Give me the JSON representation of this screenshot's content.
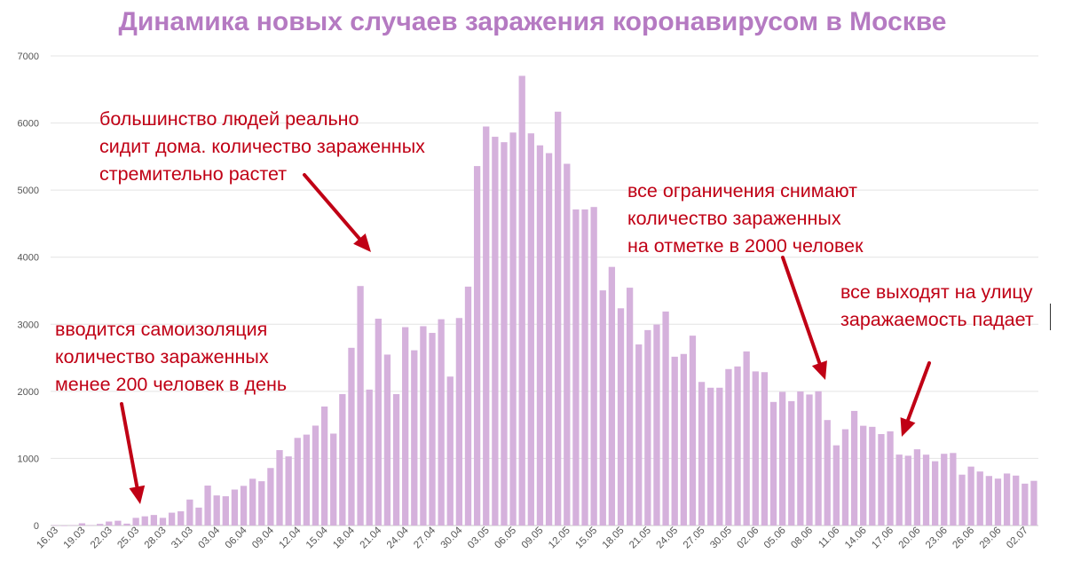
{
  "chart_data": {
    "type": "bar",
    "title": "Динамика новых случаев заражения коронавирусом в Москве",
    "xlabel": "",
    "ylabel": "",
    "ylim": [
      0,
      7000
    ],
    "y_ticks": [
      0,
      1000,
      2000,
      3000,
      4000,
      5000,
      6000,
      7000
    ],
    "grid": true,
    "bar_color": "#d5b1dc",
    "start_date": "2020-03-16",
    "tick_labels": [
      "16.03",
      "19.03",
      "22.03",
      "25.03",
      "28.03",
      "31.03",
      "03.04",
      "06.04",
      "09.04",
      "12.04",
      "15.04",
      "18.04",
      "21.04",
      "24.04",
      "27.04",
      "30.04",
      "03.05",
      "06.05",
      "09.05",
      "12.05",
      "15.05",
      "18.05",
      "21.05",
      "24.05",
      "27.05",
      "30.05",
      "02.06",
      "05.06",
      "08.06",
      "11.06",
      "14.06",
      "17.06",
      "20.06",
      "23.06",
      "26.06",
      "29.06",
      "02.07"
    ],
    "values": [
      6,
      0,
      6,
      33,
      6,
      24,
      59,
      71,
      28,
      114,
      137,
      157,
      114,
      191,
      212,
      387,
      267,
      595,
      448,
      436,
      536,
      591,
      697,
      660,
      857,
      1124,
      1030,
      1306,
      1355,
      1489,
      1774,
      1370,
      1959,
      2649,
      3570,
      2026,
      3083,
      2548,
      1959,
      2957,
      2612,
      2971,
      2871,
      3075,
      2220,
      3093,
      3561,
      5358,
      5948,
      5795,
      5714,
      5858,
      6703,
      5846,
      5667,
      5551,
      6169,
      5392,
      4712,
      4712,
      4748,
      3505,
      3855,
      3238,
      3545,
      2699,
      2913,
      2995,
      3190,
      2516,
      2557,
      2830,
      2140,
      2054,
      2054,
      2332,
      2371,
      2595,
      2297,
      2286,
      1842,
      1992,
      1854,
      1998,
      1953,
      2001,
      1572,
      1195,
      1435,
      1708,
      1487,
      1471,
      1363,
      1404,
      1057,
      1040,
      1136,
      1056,
      958,
      1069,
      1081,
      758,
      878,
      805,
      738,
      699,
      775,
      744,
      624,
      666
    ]
  },
  "annotations": {
    "a1": "вводится самоизоляция\nколичество зараженных\nменее 200 человек в день",
    "a2": "большинство людей реально\nсидит дома. количество зараженных\nстремительно растет",
    "a3": "все ограничения снимают\nколичество зараженных\nна отметке в 2000 человек",
    "a4": "все выходят на улицу\nзаражаемость падает"
  },
  "colors": {
    "title": "#b57ac2",
    "annotation": "#c00015",
    "grid": "#e4e4e4",
    "axis_text": "#555555"
  }
}
